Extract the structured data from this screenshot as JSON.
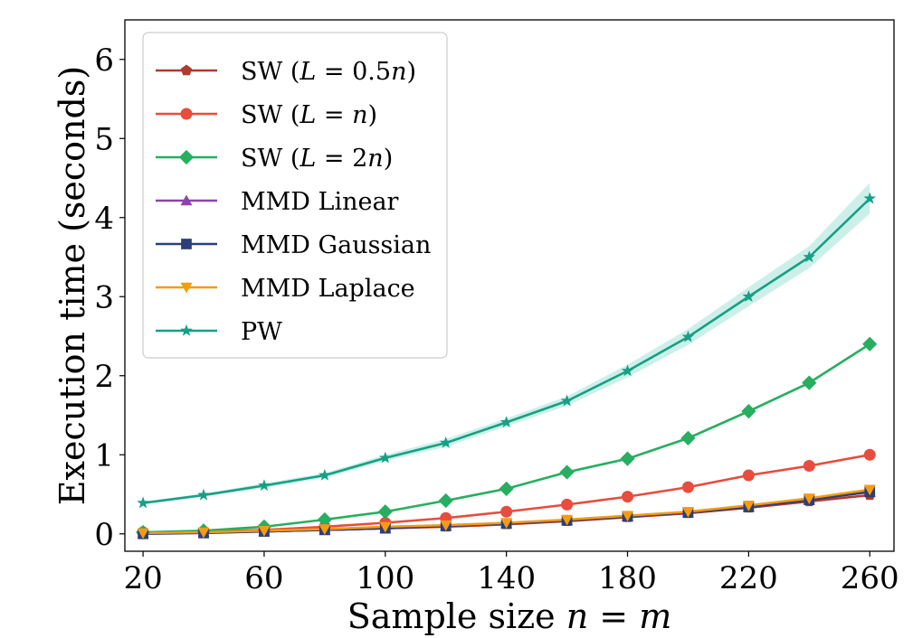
{
  "chart_data": {
    "type": "line",
    "title": "",
    "xlabel": "Sample size n = m",
    "ylabel": "Execution time (seconds)",
    "xlim": [
      14,
      268
    ],
    "ylim": [
      -0.22,
      6.5
    ],
    "xticks": [
      20,
      60,
      100,
      140,
      180,
      220,
      260
    ],
    "xtick_labels": [
      "20",
      "60",
      "100",
      "140",
      "180",
      "220",
      "260"
    ],
    "yticks": [
      0,
      1,
      2,
      3,
      4,
      5,
      6
    ],
    "ytick_labels": [
      "0",
      "1",
      "2",
      "3",
      "4",
      "5",
      "6"
    ],
    "grid": false,
    "legend_position": "top-left",
    "x": [
      20,
      40,
      60,
      80,
      100,
      120,
      140,
      160,
      180,
      200,
      220,
      240,
      260
    ],
    "series": [
      {
        "name": "SW (L=0.5n)",
        "color": "#b03a2e",
        "marker": "pentagon",
        "values": [
          0.01,
          0.02,
          0.03,
          0.05,
          0.07,
          0.09,
          0.12,
          0.16,
          0.21,
          0.26,
          0.33,
          0.41,
          0.49
        ]
      },
      {
        "name": "SW (L=n)",
        "color": "#e74c3c",
        "marker": "circle",
        "values": [
          0.02,
          0.03,
          0.05,
          0.09,
          0.14,
          0.2,
          0.28,
          0.37,
          0.47,
          0.59,
          0.74,
          0.86,
          1.0
        ]
      },
      {
        "name": "SW (L=2n)",
        "color": "#27ae60",
        "marker": "diamond",
        "values": [
          0.02,
          0.04,
          0.09,
          0.18,
          0.28,
          0.42,
          0.57,
          0.78,
          0.95,
          1.21,
          1.55,
          1.91,
          2.4
        ]
      },
      {
        "name": "MMD Linear",
        "color": "#8e44ad",
        "marker": "triangle-up",
        "values": [
          0.01,
          0.02,
          0.03,
          0.05,
          0.07,
          0.1,
          0.13,
          0.17,
          0.22,
          0.27,
          0.34,
          0.43,
          0.53
        ]
      },
      {
        "name": "MMD Gaussian",
        "color": "#2c3e7a",
        "marker": "square",
        "values": [
          0.0,
          0.01,
          0.03,
          0.05,
          0.07,
          0.1,
          0.13,
          0.17,
          0.22,
          0.27,
          0.34,
          0.43,
          0.53
        ]
      },
      {
        "name": "MMD Laplace",
        "color": "#f39c12",
        "marker": "triangle-down",
        "values": [
          0.01,
          0.02,
          0.04,
          0.06,
          0.09,
          0.11,
          0.14,
          0.18,
          0.23,
          0.28,
          0.36,
          0.45,
          0.56
        ]
      },
      {
        "name": "PW",
        "color": "#16a085",
        "marker": "star",
        "values": [
          0.39,
          0.49,
          0.61,
          0.74,
          0.96,
          1.15,
          1.41,
          1.68,
          2.06,
          2.49,
          3.0,
          3.5,
          4.24
        ],
        "band_low": [
          0.37,
          0.47,
          0.58,
          0.71,
          0.92,
          1.1,
          1.36,
          1.62,
          1.98,
          2.39,
          2.88,
          3.36,
          4.05
        ],
        "band_high": [
          0.41,
          0.51,
          0.64,
          0.77,
          1.0,
          1.2,
          1.46,
          1.74,
          2.14,
          2.59,
          3.12,
          3.64,
          4.44
        ],
        "band_color": "#a3e4d7"
      }
    ],
    "legend": [
      {
        "prefix": "SW (",
        "var": "L",
        "eq": " = ",
        "val": "0.5",
        "valvar": "n",
        "suffix": ")"
      },
      {
        "prefix": "SW (",
        "var": "L",
        "eq": " = ",
        "val": "",
        "valvar": "n",
        "suffix": ")"
      },
      {
        "prefix": "SW (",
        "var": "L",
        "eq": " = ",
        "val": "2",
        "valvar": "n",
        "suffix": ")"
      },
      {
        "text": "MMD Linear"
      },
      {
        "text": "MMD Gaussian"
      },
      {
        "text": "MMD Laplace"
      },
      {
        "text": "PW"
      }
    ],
    "xlabel_parts": {
      "text": "Sample size ",
      "v1": "n",
      "eq": " = ",
      "v2": "m"
    }
  }
}
